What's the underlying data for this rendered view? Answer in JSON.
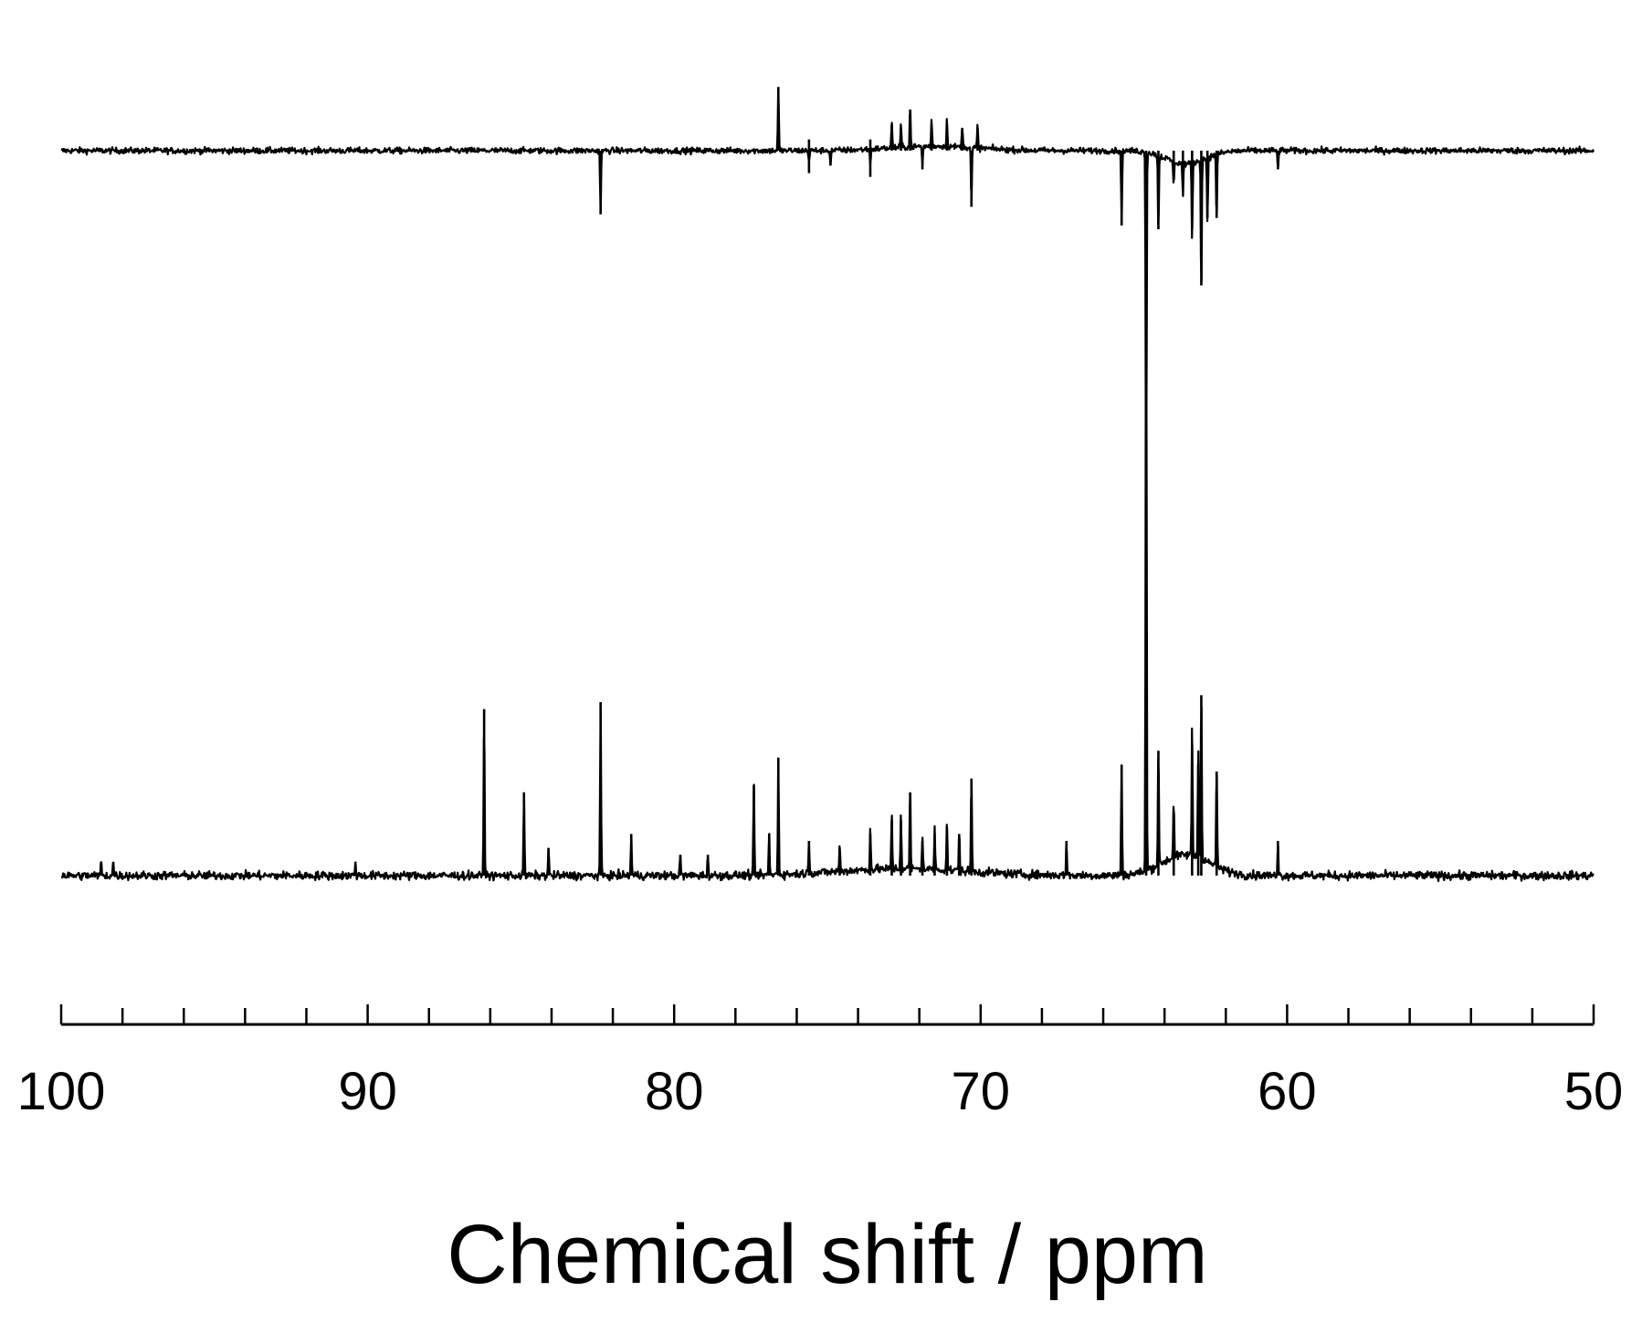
{
  "chart_data": {
    "type": "line",
    "xlabel": "Chemical shift / ppm",
    "xlim": [
      100,
      50
    ],
    "x_reversed": true,
    "x_ticks": [
      "100",
      "90",
      "80",
      "70",
      "60",
      "50"
    ],
    "x_minor_tick_step": 2,
    "grid": false,
    "legend": "none",
    "line_color": "#000000",
    "series": [
      {
        "noise": 0.008,
        "peaks": [
          {
            "x": 76.6,
            "y": 0.17
          },
          {
            "x": 72.3,
            "y": 0.11
          },
          {
            "x": 72.9,
            "y": 0.07
          },
          {
            "x": 72.6,
            "y": 0.06
          },
          {
            "x": 71.6,
            "y": 0.07
          },
          {
            "x": 71.1,
            "y": 0.07
          },
          {
            "x": 70.6,
            "y": 0.06
          },
          {
            "x": 70.1,
            "y": 0.06
          },
          {
            "x": 75.6,
            "y": 0.03
          },
          {
            "x": 73.6,
            "y": 0.03
          },
          {
            "x": 82.4,
            "y": -0.17
          },
          {
            "x": 70.3,
            "y": -0.15
          },
          {
            "x": 65.4,
            "y": -0.2
          },
          {
            "x": 64.6,
            "y": -1.0
          },
          {
            "x": 64.2,
            "y": -0.21
          },
          {
            "x": 63.1,
            "y": -0.21
          },
          {
            "x": 62.8,
            "y": -0.36
          },
          {
            "x": 62.6,
            "y": -0.18
          },
          {
            "x": 62.3,
            "y": -0.18
          },
          {
            "x": 63.7,
            "y": -0.07
          },
          {
            "x": 63.4,
            "y": -0.09
          },
          {
            "x": 73.6,
            "y": -0.07
          },
          {
            "x": 75.6,
            "y": -0.06
          },
          {
            "x": 74.9,
            "y": -0.04
          },
          {
            "x": 71.9,
            "y": -0.05
          },
          {
            "x": 60.3,
            "y": -0.05
          }
        ],
        "humps": [
          {
            "x": 63.3,
            "width": 0.9,
            "y": -0.035
          },
          {
            "x": 71.5,
            "width": 2.0,
            "y": 0.012
          }
        ]
      },
      {
        "noise": 0.006,
        "peaks": [
          {
            "x": 86.2,
            "y": 0.24
          },
          {
            "x": 84.9,
            "y": 0.12
          },
          {
            "x": 84.1,
            "y": 0.04
          },
          {
            "x": 82.4,
            "y": 0.25
          },
          {
            "x": 81.4,
            "y": 0.06
          },
          {
            "x": 79.8,
            "y": 0.03
          },
          {
            "x": 78.9,
            "y": 0.03
          },
          {
            "x": 77.4,
            "y": 0.13
          },
          {
            "x": 76.6,
            "y": 0.17
          },
          {
            "x": 76.9,
            "y": 0.06
          },
          {
            "x": 75.6,
            "y": 0.05
          },
          {
            "x": 74.6,
            "y": 0.04
          },
          {
            "x": 73.6,
            "y": 0.06
          },
          {
            "x": 72.9,
            "y": 0.08
          },
          {
            "x": 72.6,
            "y": 0.08
          },
          {
            "x": 72.3,
            "y": 0.12
          },
          {
            "x": 71.9,
            "y": 0.05
          },
          {
            "x": 71.5,
            "y": 0.06
          },
          {
            "x": 71.1,
            "y": 0.07
          },
          {
            "x": 70.7,
            "y": 0.06
          },
          {
            "x": 70.3,
            "y": 0.14
          },
          {
            "x": 67.2,
            "y": 0.05
          },
          {
            "x": 65.4,
            "y": 0.16
          },
          {
            "x": 64.6,
            "y": 1.0
          },
          {
            "x": 64.2,
            "y": 0.18
          },
          {
            "x": 63.7,
            "y": 0.09
          },
          {
            "x": 63.1,
            "y": 0.19
          },
          {
            "x": 62.9,
            "y": 0.16
          },
          {
            "x": 62.8,
            "y": 0.26
          },
          {
            "x": 62.3,
            "y": 0.15
          },
          {
            "x": 60.3,
            "y": 0.05
          },
          {
            "x": 98.7,
            "y": 0.02
          },
          {
            "x": 98.3,
            "y": 0.02
          },
          {
            "x": 90.4,
            "y": 0.02
          }
        ],
        "humps": [
          {
            "x": 63.3,
            "width": 1.1,
            "y": 0.03
          },
          {
            "x": 72.5,
            "width": 3.0,
            "y": 0.01
          }
        ]
      }
    ]
  }
}
